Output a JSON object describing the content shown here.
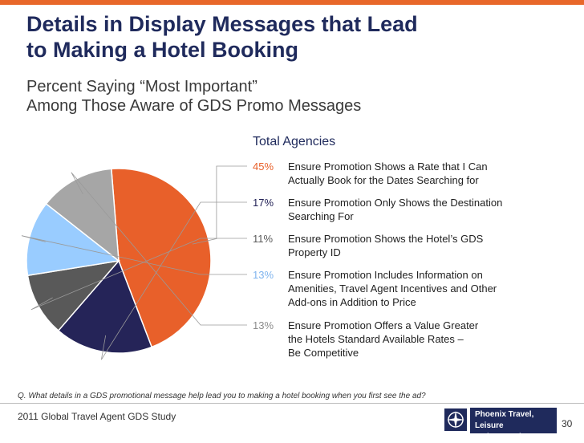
{
  "header": {
    "accent_color": "#e8672a",
    "title_lines": [
      "Details in Display Messages that Lead",
      "to Making a Hotel Booking"
    ],
    "subtitle_lines": [
      "Percent Saying “Most Important”",
      "Among Those Aware of GDS Promo Messages"
    ]
  },
  "legend": {
    "heading": "Total Agencies",
    "rows": [
      {
        "pct": "45%",
        "label_lines": [
          "Ensure Promotion Shows a Rate that I Can",
          "Actually Book for the Dates Searching for"
        ]
      },
      {
        "pct": "17%",
        "label_lines": [
          "Ensure Promotion Only Shows the Destination",
          "Searching For"
        ]
      },
      {
        "pct": "11%",
        "label_lines": [
          "Ensure Promotion Shows the Hotel’s GDS",
          "Property ID"
        ]
      },
      {
        "pct": "13%",
        "label_lines": [
          "Ensure Promotion Includes Information on",
          "Amenities, Travel Agent Incentives and Other",
          "Add-ons in Addition to Price"
        ]
      },
      {
        "pct": "13%",
        "label_lines": [
          "Ensure Promotion Offers a Value Greater",
          "the Hotels Standard Available Rates –",
          "Be Competitive"
        ]
      }
    ]
  },
  "chart_data": {
    "type": "pie",
    "title": "Total Agencies",
    "slices": [
      {
        "label": "Ensure Promotion Shows a Rate that I Can Actually Book for the Dates Searching for",
        "value": 45,
        "color": "#e8602a",
        "pct_color": "#e8602a"
      },
      {
        "label": "Ensure Promotion Only Shows the Destination Searching For",
        "value": 17,
        "color": "#252458",
        "pct_color": "#252458"
      },
      {
        "label": "Ensure Promotion Shows the Hotel’s GDS Property ID",
        "value": 11,
        "color": "#595959",
        "pct_color": "#595959"
      },
      {
        "label": "Ensure Promotion Includes Information on Amenities, Travel Agent Incentives and Other Add-ons in Addition to Price",
        "value": 13,
        "color": "#99ccff",
        "pct_color": "#7fb4ee"
      },
      {
        "label": "Ensure Promotion Offers a Value Greater the Hotels Standard Available Rates – Be Competitive",
        "value": 13,
        "color": "#a6a6a6",
        "pct_color": "#8c8c8c"
      }
    ]
  },
  "footer": {
    "question": "Q. What details in a GDS promotional message help lead you to making a hotel booking when you first see the ad?",
    "study": "2011 Global Travel Agent GDS Study",
    "page_number": "30",
    "logo_lines": [
      "Phoenix Travel, Leisure",
      "and Entertainment"
    ]
  }
}
